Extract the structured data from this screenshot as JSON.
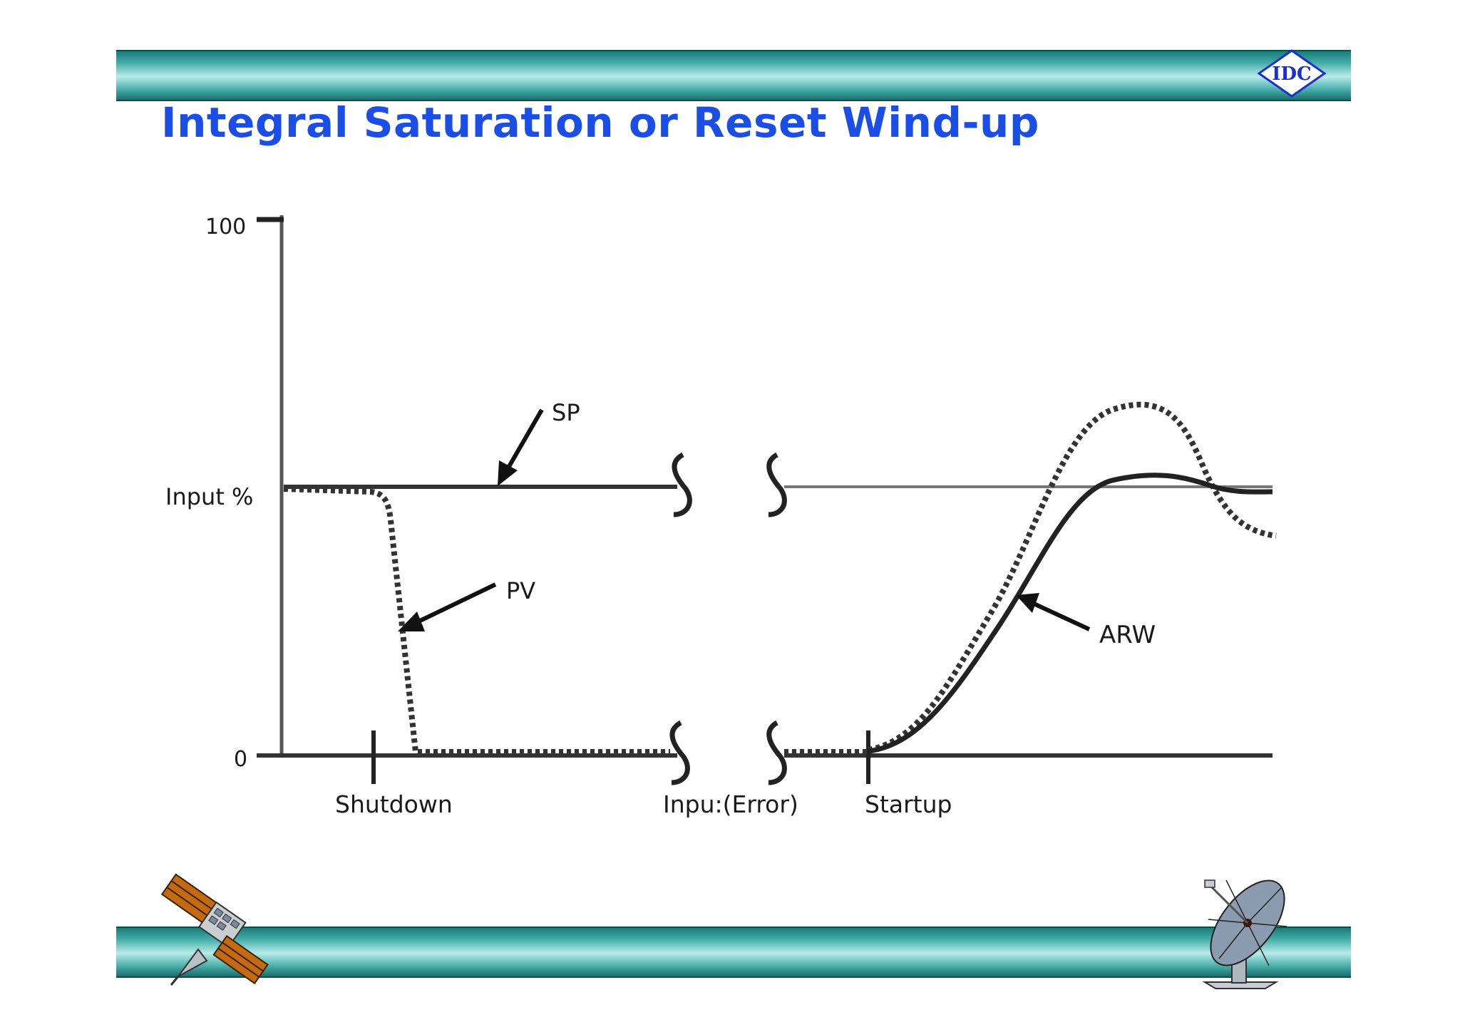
{
  "slide": {
    "title": "Integral Saturation or Reset Wind-up",
    "logo_text": "IDC",
    "accent_color": "#1a4ee6",
    "band_color": "#3fa9a4"
  },
  "diagram": {
    "y_axis": {
      "top_label": "100",
      "middle_label": "Input %",
      "bottom_label": "0"
    },
    "annotations": {
      "sp": "SP",
      "pv": "PV",
      "arw": "ARW"
    },
    "x_labels": {
      "shutdown": "Shutdown",
      "break": "Inpu:(Error)",
      "startup": "Startup"
    }
  },
  "clipart": {
    "left": "satellite-icon",
    "right": "satellite-dish-icon"
  }
}
